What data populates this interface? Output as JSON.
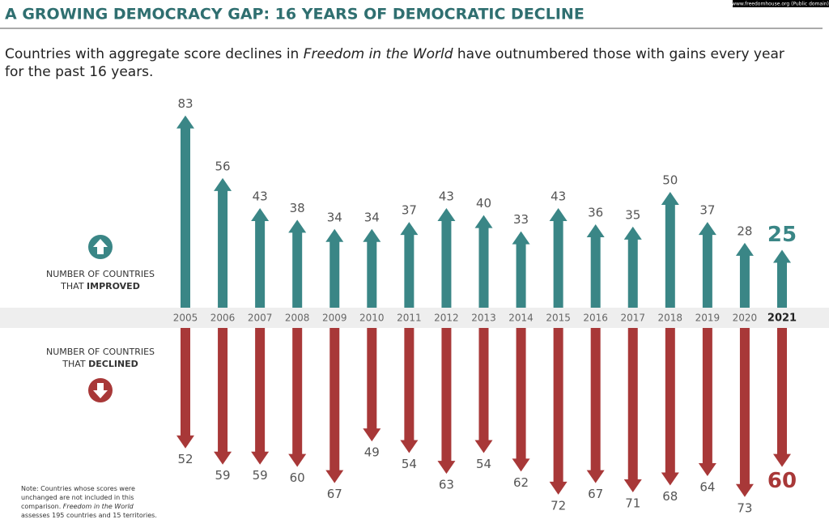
{
  "header": {
    "title": "A GROWING DEMOCRACY GAP: 16 YEARS OF DEMOCRATIC DECLINE",
    "source": "www.freedomhouse.org (Public domain)",
    "subtitle_parts": [
      "Countries with aggregate score declines in ",
      "Freedom in the World",
      " have outnumbered those with gains every year for the past 16 years."
    ]
  },
  "chart_data": {
    "type": "diverging-arrows",
    "categories": [
      "2005",
      "2006",
      "2007",
      "2008",
      "2009",
      "2010",
      "2011",
      "2012",
      "2013",
      "2014",
      "2015",
      "2016",
      "2017",
      "2018",
      "2019",
      "2020",
      "2021"
    ],
    "series": [
      {
        "label_lines": [
          "NUMBER OF COUNTRIES",
          "THAT ",
          "IMPROVED"
        ],
        "color": "#3a8686",
        "direction": "up",
        "values": [
          83,
          56,
          43,
          38,
          34,
          34,
          37,
          43,
          40,
          33,
          43,
          36,
          35,
          50,
          37,
          28,
          25
        ]
      },
      {
        "label_lines": [
          "NUMBER OF COUNTRIES",
          "THAT ",
          "DECLINED"
        ],
        "color": "#a83838",
        "direction": "down",
        "values": [
          52,
          59,
          59,
          60,
          67,
          49,
          54,
          63,
          54,
          62,
          72,
          67,
          71,
          68,
          64,
          73,
          60
        ]
      }
    ]
  },
  "note_parts": [
    "Note: Countries whose scores were unchanged are not included in this comparison. ",
    "Freedom in the World",
    " assesses 195 countries and 15 territories."
  ]
}
